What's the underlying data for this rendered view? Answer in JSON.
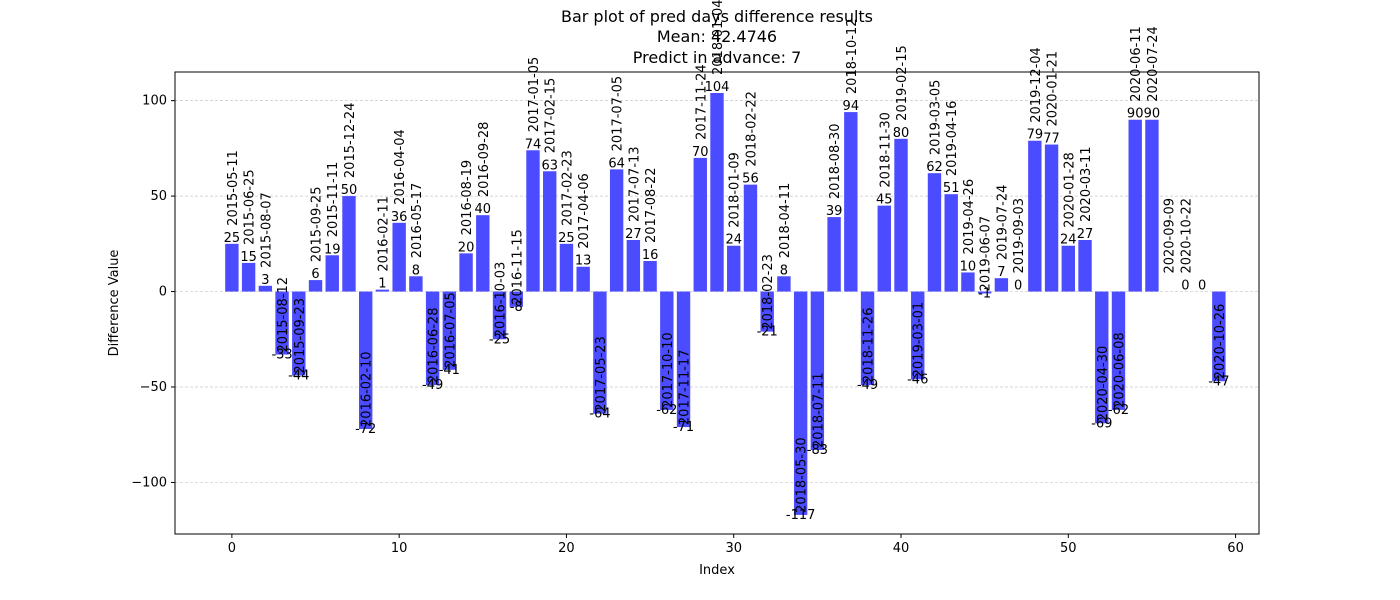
{
  "chart_data": {
    "type": "bar",
    "title_lines": [
      "Bar plot of pred days difference results",
      "Mean: 42.4746",
      "Predict in advance: 7"
    ],
    "xlabel": "Index",
    "ylabel": "Difference Value",
    "xlim": [
      -3.4,
      61.4
    ],
    "ylim": [
      -127,
      115
    ],
    "xticks": [
      0,
      10,
      20,
      30,
      40,
      50,
      60
    ],
    "yticks": [
      -100,
      -50,
      0,
      50,
      100
    ],
    "grid": "horizontal-dashed",
    "bar_color": "#4b4bff",
    "bars": [
      {
        "x": 0,
        "value": 25,
        "value_label": "25",
        "date": "2015-05-11"
      },
      {
        "x": 1,
        "value": 15,
        "value_label": "15",
        "date": "2015-06-25"
      },
      {
        "x": 2,
        "value": 3,
        "value_label": "3",
        "date": "2015-08-07"
      },
      {
        "x": 3,
        "value": -33,
        "value_label": "-33",
        "date": "2015-08-12"
      },
      {
        "x": 4,
        "value": -44,
        "value_label": "-44",
        "date": "2015-09-23"
      },
      {
        "x": 5,
        "value": 6,
        "value_label": "6",
        "date": "2015-09-25"
      },
      {
        "x": 6,
        "value": 19,
        "value_label": "19",
        "date": "2015-11-11"
      },
      {
        "x": 7,
        "value": 50,
        "value_label": "50",
        "date": "2015-12-24"
      },
      {
        "x": 8,
        "value": -72,
        "value_label": "-72",
        "date": "2016-02-10"
      },
      {
        "x": 9,
        "value": 1,
        "value_label": "1",
        "date": "2016-02-11"
      },
      {
        "x": 10,
        "value": 36,
        "value_label": "36",
        "date": "2016-04-04"
      },
      {
        "x": 11,
        "value": 8,
        "value_label": "8",
        "date": "2016-05-17"
      },
      {
        "x": 12,
        "value": -49,
        "value_label": "-49",
        "date": "2016-06-28"
      },
      {
        "x": 13,
        "value": -41,
        "value_label": "-41",
        "date": "2016-07-05"
      },
      {
        "x": 14,
        "value": 20,
        "value_label": "20",
        "date": "2016-08-19"
      },
      {
        "x": 15,
        "value": 40,
        "value_label": "40",
        "date": "2016-09-28"
      },
      {
        "x": 16,
        "value": -25,
        "value_label": "-25",
        "date": "2016-10-03"
      },
      {
        "x": 17,
        "value": -8,
        "value_label": "-8",
        "date": "2016-11-15"
      },
      {
        "x": 18,
        "value": 74,
        "value_label": "74",
        "date": "2017-01-05"
      },
      {
        "x": 19,
        "value": 63,
        "value_label": "63",
        "date": "2017-02-15"
      },
      {
        "x": 20,
        "value": 25,
        "value_label": "25",
        "date": "2017-02-23"
      },
      {
        "x": 21,
        "value": 13,
        "value_label": "13",
        "date": "2017-04-06"
      },
      {
        "x": 22,
        "value": -64,
        "value_label": "-64",
        "date": "2017-05-23"
      },
      {
        "x": 23,
        "value": 64,
        "value_label": "64",
        "date": "2017-07-05"
      },
      {
        "x": 24,
        "value": 27,
        "value_label": "27",
        "date": "2017-07-13"
      },
      {
        "x": 25,
        "value": 16,
        "value_label": "16",
        "date": "2017-08-22"
      },
      {
        "x": 26,
        "value": -62,
        "value_label": "-62",
        "date": "2017-10-10"
      },
      {
        "x": 27,
        "value": -71,
        "value_label": "-71",
        "date": "2017-11-17"
      },
      {
        "x": 28,
        "value": 70,
        "value_label": "70",
        "date": "2017-11-24"
      },
      {
        "x": 29,
        "value": 104,
        "value_label": "104",
        "date": "2018-01-04"
      },
      {
        "x": 30,
        "value": 24,
        "value_label": "24",
        "date": "2018-01-09"
      },
      {
        "x": 31,
        "value": 56,
        "value_label": "56",
        "date": "2018-02-22"
      },
      {
        "x": 32,
        "value": -21,
        "value_label": "-21",
        "date": "2018-02-23"
      },
      {
        "x": 33,
        "value": 8,
        "value_label": "8",
        "date": "2018-04-11"
      },
      {
        "x": 34,
        "value": -117,
        "value_label": "-117",
        "date": "2018-05-30"
      },
      {
        "x": 35,
        "value": -83,
        "value_label": "-83",
        "date": "2018-07-11"
      },
      {
        "x": 36,
        "value": 39,
        "value_label": "39",
        "date": "2018-08-30"
      },
      {
        "x": 37,
        "value": 94,
        "value_label": "94",
        "date": "2018-10-12"
      },
      {
        "x": 38,
        "value": -49,
        "value_label": "-49",
        "date": "2018-11-26"
      },
      {
        "x": 39,
        "value": 45,
        "value_label": "45",
        "date": "2018-11-30"
      },
      {
        "x": 40,
        "value": 80,
        "value_label": "80",
        "date": "2019-02-15"
      },
      {
        "x": 41,
        "value": -46,
        "value_label": "-46",
        "date": "2019-03-01"
      },
      {
        "x": 42,
        "value": 62,
        "value_label": "62",
        "date": "2019-03-05"
      },
      {
        "x": 43,
        "value": 51,
        "value_label": "51",
        "date": "2019-04-16"
      },
      {
        "x": 44,
        "value": 10,
        "value_label": "10",
        "date": "2019-04-26"
      },
      {
        "x": 45,
        "value": -1,
        "value_label": "-1",
        "date": "2019-06-07"
      },
      {
        "x": 46,
        "value": 7,
        "value_label": "7",
        "date": "2019-07-24"
      },
      {
        "x": 47,
        "value": 0,
        "value_label": "0",
        "date": "2019-09-03"
      },
      {
        "x": 48,
        "value": 79,
        "value_label": "79",
        "date": "2019-12-04"
      },
      {
        "x": 49,
        "value": 77,
        "value_label": "77",
        "date": "2020-01-21"
      },
      {
        "x": 50,
        "value": 24,
        "value_label": "24",
        "date": "2020-01-28"
      },
      {
        "x": 51,
        "value": 27,
        "value_label": "27",
        "date": "2020-03-11"
      },
      {
        "x": 52,
        "value": -69,
        "value_label": "-69",
        "date": "2020-04-30"
      },
      {
        "x": 53,
        "value": -62,
        "value_label": "-62",
        "date": "2020-06-08"
      },
      {
        "x": 54,
        "value": 90,
        "value_label": "90",
        "date": "2020-06-11"
      },
      {
        "x": 55,
        "value": 90,
        "value_label": "90",
        "date": "2020-07-24"
      },
      {
        "x": 56,
        "value": 0,
        "value_label": "",
        "date": "2020-09-09"
      },
      {
        "x": 57,
        "value": 0,
        "value_label": "0",
        "date": "2020-10-22"
      },
      {
        "x": 58,
        "value": 0,
        "value_label": "0",
        "date": ""
      },
      {
        "x": 59,
        "value": -47,
        "value_label": "-47",
        "date": "2020-10-26"
      }
    ]
  }
}
